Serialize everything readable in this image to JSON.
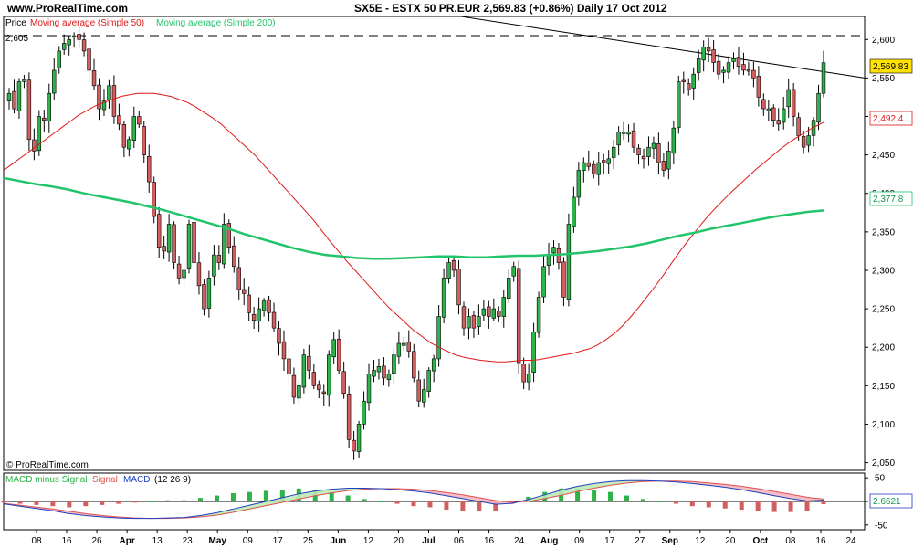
{
  "header": {
    "site": "www.ProRealTime.com",
    "title": "SX5E - ESTX 50 PR.EUR",
    "last": "2,569.83",
    "change": "(+0.86%)",
    "period": "Daily",
    "date": "17 Oct 2012"
  },
  "legend": {
    "price": "Price",
    "ma50": "Moving average (Simple 50)",
    "ma200": "Moving average (Simple 200)",
    "top_value": "2,605",
    "copyright": "© ProRealTime.com"
  },
  "price_labels": {
    "last": "2,569.83",
    "ma50": "2,492.4",
    "ma200": "2,377.8"
  },
  "macd_legend": {
    "hist": "MACD minus Signal",
    "signal": "Signal",
    "macd": "MACD",
    "params": "(12 26 9)"
  },
  "macd_labels": {
    "last": "2.6621"
  },
  "colors": {
    "up": "#2db34a",
    "down": "#d06060",
    "ma50": "#e01818",
    "ma200": "#22c46a",
    "macd_line": "#2040c0",
    "signal_line": "#e05050",
    "last_label_bg": "#ffe100"
  },
  "chart_data": [
    {
      "type": "candlestick",
      "title": "SX5E - ESTX 50 PR.EUR",
      "ylim": [
        2040,
        2630
      ],
      "yticks": [
        "2,050",
        "2,100",
        "2,150",
        "2,200",
        "2,250",
        "2,300",
        "2,350",
        "2,400",
        "2,450",
        "2,500",
        "2,550",
        "2,600"
      ],
      "x_tick_labels": [
        "08",
        "16",
        "26",
        "Apr",
        "13",
        "23",
        "May",
        "09",
        "17",
        "25",
        "Jun",
        "12",
        "20",
        "Jul",
        "06",
        "16",
        "24",
        "Aug",
        "09",
        "17",
        "27",
        "Sep",
        "12",
        "20",
        "Oct",
        "08",
        "16",
        "24"
      ],
      "resistance_level": 2605,
      "trendline": {
        "from": [
          "Jul 06",
          2630
        ],
        "to": [
          "Oct 24",
          2550
        ]
      },
      "closes": [
        2530,
        2510,
        2545,
        2548,
        2470,
        2455,
        2500,
        2495,
        2530,
        2560,
        2585,
        2595,
        2600,
        2605,
        2600,
        2585,
        2560,
        2540,
        2510,
        2520,
        2540,
        2500,
        2490,
        2460,
        2470,
        2500,
        2490,
        2450,
        2415,
        2370,
        2330,
        2325,
        2360,
        2310,
        2290,
        2300,
        2360,
        2310,
        2280,
        2250,
        2290,
        2320,
        2310,
        2360,
        2330,
        2305,
        2275,
        2270,
        2245,
        2235,
        2250,
        2260,
        2245,
        2225,
        2205,
        2185,
        2165,
        2135,
        2150,
        2190,
        2170,
        2150,
        2145,
        2140,
        2190,
        2210,
        2170,
        2140,
        2080,
        2065,
        2100,
        2130,
        2165,
        2170,
        2175,
        2160,
        2165,
        2190,
        2205,
        2205,
        2195,
        2160,
        2130,
        2145,
        2170,
        2185,
        2240,
        2290,
        2310,
        2300,
        2255,
        2225,
        2240,
        2225,
        2240,
        2250,
        2240,
        2250,
        2240,
        2265,
        2290,
        2305,
        2180,
        2155,
        2165,
        2220,
        2265,
        2305,
        2320,
        2330,
        2310,
        2265,
        2360,
        2395,
        2430,
        2440,
        2435,
        2425,
        2440,
        2440,
        2445,
        2460,
        2480,
        2480,
        2480,
        2460,
        2450,
        2445,
        2460,
        2465,
        2440,
        2430,
        2455,
        2485,
        2545,
        2545,
        2535,
        2555,
        2575,
        2590,
        2585,
        2570,
        2555,
        2560,
        2570,
        2575,
        2565,
        2560,
        2560,
        2550,
        2525,
        2510,
        2510,
        2495,
        2490,
        2510,
        2535,
        2500,
        2475,
        2460,
        2475,
        2495,
        2530,
        2569.83
      ],
      "ma50": [
        2430,
        2438,
        2446,
        2454,
        2462,
        2470,
        2478,
        2486,
        2494,
        2502,
        2508,
        2514,
        2518,
        2522,
        2526,
        2528,
        2530,
        2530,
        2530,
        2528,
        2526,
        2522,
        2518,
        2512,
        2505,
        2498,
        2490,
        2480,
        2470,
        2460,
        2450,
        2438,
        2426,
        2414,
        2402,
        2390,
        2378,
        2366,
        2352,
        2338,
        2325,
        2312,
        2300,
        2288,
        2276,
        2264,
        2252,
        2242,
        2232,
        2222,
        2214,
        2206,
        2200,
        2195,
        2190,
        2187,
        2185,
        2183,
        2182,
        2181,
        2181,
        2182,
        2183,
        2183,
        2184,
        2186,
        2188,
        2190,
        2192,
        2195,
        2198,
        2203,
        2210,
        2218,
        2228,
        2240,
        2253,
        2267,
        2281,
        2296,
        2312,
        2327,
        2341,
        2355,
        2368,
        2380,
        2391,
        2402,
        2412,
        2422,
        2432,
        2441,
        2450,
        2459,
        2467,
        2474,
        2481,
        2487,
        2492.4
      ],
      "ma200": [
        2420,
        2416,
        2412,
        2409,
        2405,
        2400,
        2396,
        2392,
        2388,
        2383,
        2378,
        2372,
        2366,
        2360,
        2354,
        2347,
        2341,
        2335,
        2329,
        2324,
        2320,
        2318,
        2316,
        2315,
        2315,
        2316,
        2317,
        2318,
        2318,
        2317,
        2317,
        2318,
        2319,
        2319,
        2320,
        2321,
        2323,
        2325,
        2328,
        2331,
        2335,
        2340,
        2345,
        2349,
        2354,
        2358,
        2362,
        2366,
        2370,
        2373,
        2376,
        2377.8
      ]
    },
    {
      "type": "macd",
      "params": "(12 26 9)",
      "ylim": [
        -60,
        60
      ],
      "yticks": [
        "50",
        "0",
        "-50"
      ],
      "macd": [
        -5,
        -10,
        -15,
        -20,
        -26,
        -30,
        -33,
        -35,
        -36,
        -36,
        -35,
        -34,
        -30,
        -24,
        -16,
        -8,
        0,
        8,
        16,
        22,
        26,
        28,
        28,
        27,
        25,
        22,
        18,
        12,
        6,
        0,
        -6,
        -4,
        4,
        14,
        24,
        32,
        38,
        42,
        44,
        44,
        43,
        41,
        38,
        34,
        30,
        25,
        19,
        12,
        6,
        1,
        2.6621
      ],
      "signal": [
        -4,
        -8,
        -12,
        -16,
        -21,
        -26,
        -30,
        -33,
        -35,
        -36,
        -36,
        -35,
        -33,
        -29,
        -23,
        -16,
        -9,
        -2,
        5,
        12,
        18,
        23,
        26,
        27,
        27,
        26,
        23,
        19,
        14,
        8,
        2,
        -2,
        0,
        6,
        13,
        21,
        28,
        34,
        39,
        42,
        43,
        43,
        42,
        39,
        36,
        32,
        27,
        21,
        15,
        9,
        5
      ]
    }
  ]
}
